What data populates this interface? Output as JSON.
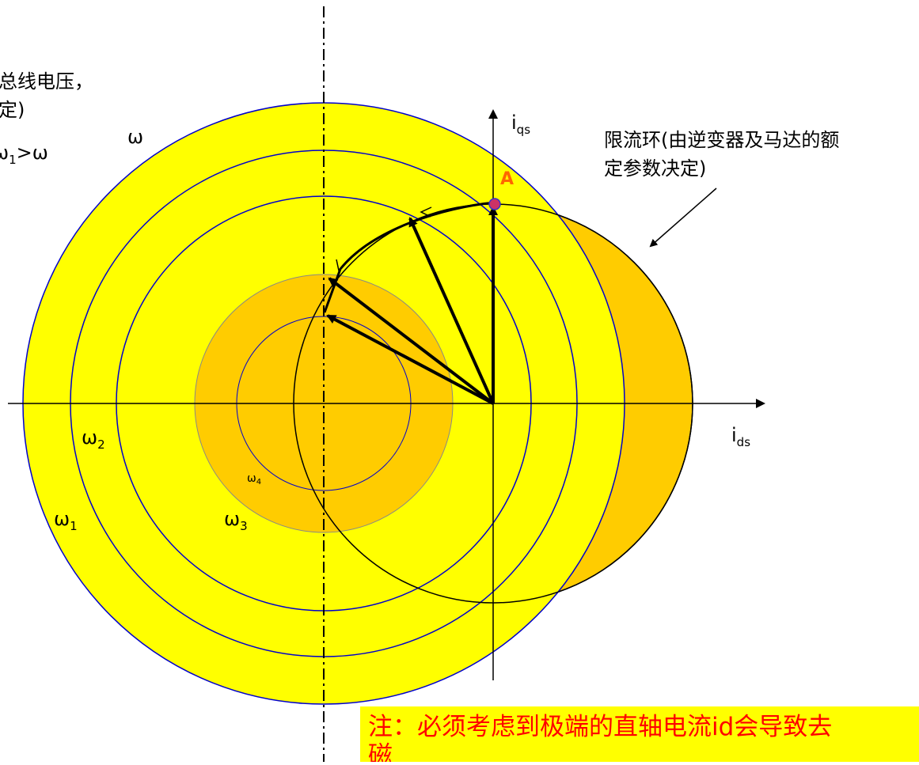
{
  "text": {
    "top_left_line1": "总线电压，",
    "top_left_line2": "定)",
    "top_left_line3": "ω",
    "top_left_sub": "1",
    "top_left_line3_tail": ">ω",
    "omega_top": "ω",
    "omega1": "ω",
    "omega1_sub": "1",
    "omega2": "ω",
    "omega2_sub": "2",
    "omega3": "ω",
    "omega3_sub": "3",
    "omega4": "ω",
    "omega4_sub": "4",
    "point_A": "A",
    "axis_q": "i",
    "axis_q_sub": "qs",
    "axis_d": "i",
    "axis_d_sub": "ds",
    "current_limit_line1": "限流环(由逆变器及马达的额",
    "current_limit_line2": "定参数决定)",
    "note_line1": "注：必须考虑到极端的直轴电流id会导致去",
    "note_line2": "磁"
  },
  "colors": {
    "voltage_region": "#ffff00",
    "current_region": "#ffcc00",
    "circle_stroke": "#0000cc",
    "note_text": "#ff0000",
    "point_A": "#ff6600"
  }
}
